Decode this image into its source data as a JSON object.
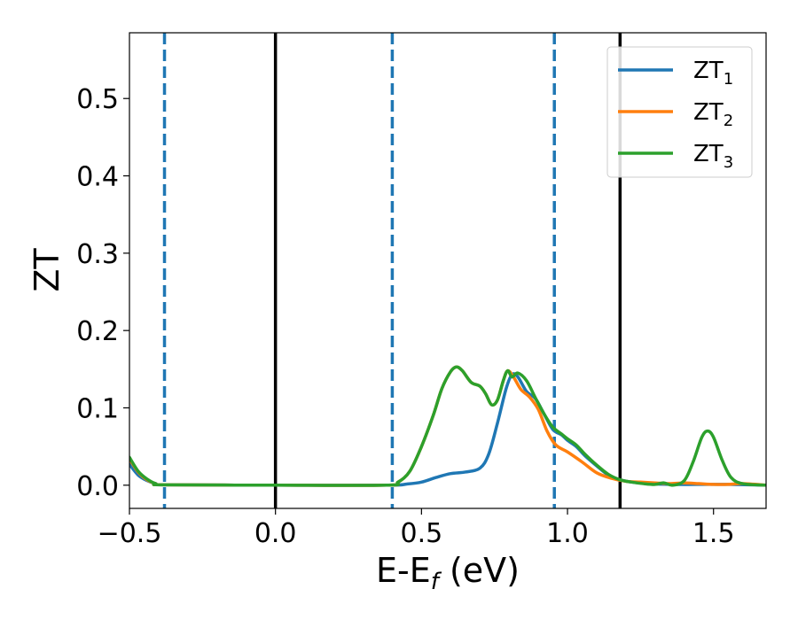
{
  "chart_data": {
    "type": "line",
    "xlabel": "E-E_f (eV)",
    "xlabel_parts": {
      "main": "E-E",
      "sub": "f",
      "tail": " (eV)"
    },
    "ylabel": "ZT",
    "xlim": [
      -0.5,
      1.68
    ],
    "ylim": [
      -0.03,
      0.585
    ],
    "x_ticks": [
      -0.5,
      0.0,
      0.5,
      1.0,
      1.5
    ],
    "x_tick_labels": [
      "−0.5",
      "0.0",
      "0.5",
      "1.0",
      "1.5"
    ],
    "y_ticks": [
      0.0,
      0.1,
      0.2,
      0.3,
      0.4,
      0.5
    ],
    "y_tick_labels": [
      "0.0",
      "0.1",
      "0.2",
      "0.3",
      "0.4",
      "0.5"
    ],
    "grid": false,
    "legend_position": "top-right",
    "vertical_lines": [
      {
        "x": -0.38,
        "style": "dashed",
        "color": "#1f77b4"
      },
      {
        "x": 0.0,
        "style": "solid",
        "color": "#000000"
      },
      {
        "x": 0.4,
        "style": "dashed",
        "color": "#1f77b4"
      },
      {
        "x": 0.955,
        "style": "dashed",
        "color": "#1f77b4"
      },
      {
        "x": 1.18,
        "style": "solid",
        "color": "#000000"
      }
    ],
    "series": [
      {
        "name": "ZT_1",
        "label_main": "ZT",
        "label_sub": "1",
        "color": "#1f77b4",
        "points": [
          [
            -0.5,
            0.027
          ],
          [
            -0.47,
            0.013
          ],
          [
            -0.44,
            0.006
          ],
          [
            -0.41,
            0.002
          ],
          [
            -0.38,
            0.0005
          ],
          [
            0.0,
            0.0
          ],
          [
            0.38,
            0.0
          ],
          [
            0.45,
            0.0015
          ],
          [
            0.5,
            0.004
          ],
          [
            0.55,
            0.01
          ],
          [
            0.6,
            0.015
          ],
          [
            0.65,
            0.017
          ],
          [
            0.7,
            0.022
          ],
          [
            0.73,
            0.04
          ],
          [
            0.76,
            0.08
          ],
          [
            0.79,
            0.125
          ],
          [
            0.81,
            0.143
          ],
          [
            0.83,
            0.14
          ],
          [
            0.86,
            0.121
          ],
          [
            0.89,
            0.112
          ],
          [
            0.92,
            0.092
          ],
          [
            0.95,
            0.072
          ],
          [
            0.98,
            0.065
          ],
          [
            1.0,
            0.058
          ],
          [
            1.03,
            0.05
          ],
          [
            1.06,
            0.038
          ],
          [
            1.1,
            0.025
          ],
          [
            1.14,
            0.013
          ],
          [
            1.18,
            0.007
          ],
          [
            1.22,
            0.004
          ],
          [
            1.28,
            0.002
          ],
          [
            1.35,
            0.001
          ],
          [
            1.45,
            0.001
          ],
          [
            1.55,
            0.001
          ],
          [
            1.68,
            0.0
          ]
        ]
      },
      {
        "name": "ZT_2",
        "label_main": "ZT",
        "label_sub": "2",
        "color": "#ff7f0e",
        "points": [
          [
            -0.5,
            0.034
          ],
          [
            -0.47,
            0.017
          ],
          [
            -0.44,
            0.007
          ],
          [
            -0.41,
            0.002
          ],
          [
            -0.38,
            0.0005
          ],
          [
            0.0,
            0.0
          ],
          [
            0.38,
            0.0
          ],
          [
            0.42,
            0.004
          ],
          [
            0.46,
            0.018
          ],
          [
            0.5,
            0.05
          ],
          [
            0.54,
            0.09
          ],
          [
            0.57,
            0.125
          ],
          [
            0.6,
            0.147
          ],
          [
            0.62,
            0.153
          ],
          [
            0.64,
            0.148
          ],
          [
            0.67,
            0.133
          ],
          [
            0.7,
            0.128
          ],
          [
            0.72,
            0.118
          ],
          [
            0.74,
            0.104
          ],
          [
            0.76,
            0.11
          ],
          [
            0.78,
            0.135
          ],
          [
            0.795,
            0.148
          ],
          [
            0.815,
            0.14
          ],
          [
            0.84,
            0.124
          ],
          [
            0.87,
            0.114
          ],
          [
            0.9,
            0.098
          ],
          [
            0.93,
            0.07
          ],
          [
            0.96,
            0.052
          ],
          [
            1.0,
            0.043
          ],
          [
            1.05,
            0.03
          ],
          [
            1.1,
            0.016
          ],
          [
            1.15,
            0.009
          ],
          [
            1.2,
            0.005
          ],
          [
            1.25,
            0.004
          ],
          [
            1.3,
            0.003
          ],
          [
            1.35,
            0.002
          ],
          [
            1.4,
            0.003
          ],
          [
            1.45,
            0.002
          ],
          [
            1.5,
            0.001
          ],
          [
            1.55,
            0.001
          ],
          [
            1.6,
            0.002
          ],
          [
            1.68,
            0.0
          ]
        ]
      },
      {
        "name": "ZT_3",
        "label_main": "ZT",
        "label_sub": "3",
        "color": "#2ca02c",
        "points": [
          [
            -0.5,
            0.036
          ],
          [
            -0.47,
            0.018
          ],
          [
            -0.44,
            0.008
          ],
          [
            -0.41,
            0.002
          ],
          [
            -0.38,
            0.0005
          ],
          [
            0.0,
            0.0
          ],
          [
            0.38,
            0.0
          ],
          [
            0.42,
            0.004
          ],
          [
            0.46,
            0.018
          ],
          [
            0.5,
            0.05
          ],
          [
            0.54,
            0.09
          ],
          [
            0.57,
            0.125
          ],
          [
            0.6,
            0.147
          ],
          [
            0.62,
            0.153
          ],
          [
            0.64,
            0.148
          ],
          [
            0.67,
            0.133
          ],
          [
            0.7,
            0.128
          ],
          [
            0.72,
            0.118
          ],
          [
            0.74,
            0.104
          ],
          [
            0.76,
            0.11
          ],
          [
            0.78,
            0.135
          ],
          [
            0.795,
            0.148
          ],
          [
            0.81,
            0.14
          ],
          [
            0.83,
            0.145
          ],
          [
            0.86,
            0.135
          ],
          [
            0.89,
            0.113
          ],
          [
            0.92,
            0.092
          ],
          [
            0.95,
            0.075
          ],
          [
            0.98,
            0.066
          ],
          [
            1.0,
            0.06
          ],
          [
            1.03,
            0.052
          ],
          [
            1.06,
            0.04
          ],
          [
            1.1,
            0.026
          ],
          [
            1.14,
            0.014
          ],
          [
            1.18,
            0.007
          ],
          [
            1.22,
            0.004
          ],
          [
            1.26,
            0.002
          ],
          [
            1.3,
            0.001
          ],
          [
            1.33,
            0.003
          ],
          [
            1.36,
            0.0
          ],
          [
            1.4,
            0.006
          ],
          [
            1.43,
            0.03
          ],
          [
            1.46,
            0.062
          ],
          [
            1.48,
            0.07
          ],
          [
            1.5,
            0.062
          ],
          [
            1.53,
            0.032
          ],
          [
            1.56,
            0.01
          ],
          [
            1.6,
            0.002
          ],
          [
            1.68,
            0.0
          ]
        ]
      }
    ]
  }
}
